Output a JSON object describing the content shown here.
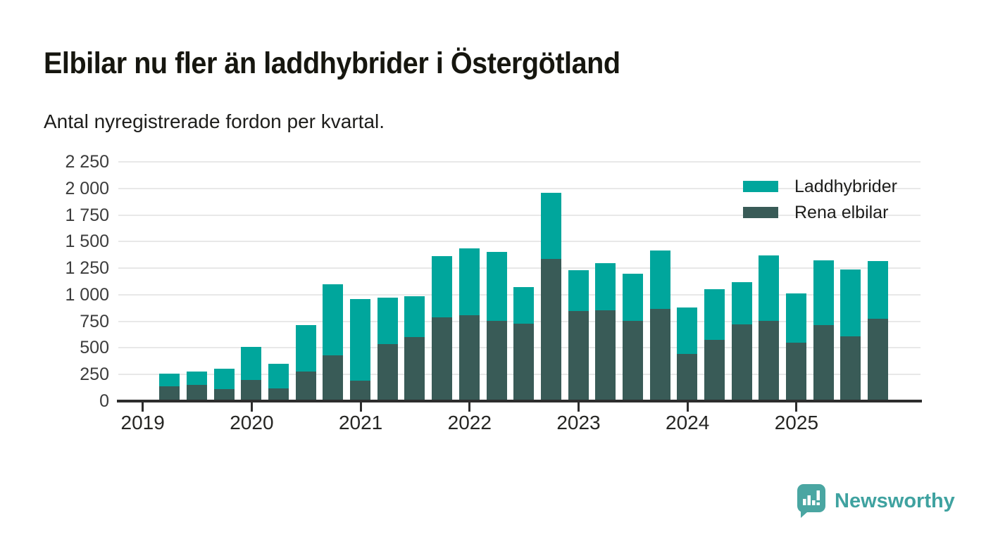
{
  "title": "Elbilar nu fler än laddhybrider i Östergötland",
  "subtitle": "Antal nyregistrerade fordon per kvartal.",
  "footer": {
    "brand": "Newsworthy"
  },
  "colors": {
    "laddhybrider": "#00a69c",
    "rena_elbilar": "#395b57",
    "gridline": "#e8e8e8",
    "axis": "#2d2d2d",
    "brand_teal": "#4aa6a2"
  },
  "chart_data": {
    "type": "bar",
    "stacked": true,
    "title": "Elbilar nu fler än laddhybrider i Östergötland",
    "subtitle": "Antal nyregistrerade fordon per kvartal.",
    "xlabel": "",
    "ylabel": "",
    "ylim": [
      0,
      2250
    ],
    "ytick_interval": 250,
    "grid": true,
    "legend_position": "top-right",
    "x": [
      "2019 Q2",
      "2019 Q3",
      "2019 Q4",
      "2020 Q1",
      "2020 Q2",
      "2020 Q3",
      "2020 Q4",
      "2021 Q1",
      "2021 Q2",
      "2021 Q3",
      "2021 Q4",
      "2022 Q1",
      "2022 Q2",
      "2022 Q3",
      "2022 Q4",
      "2023 Q1",
      "2023 Q2",
      "2023 Q3",
      "2023 Q4",
      "2024 Q1",
      "2024 Q2",
      "2024 Q3",
      "2024 Q4",
      "2025 Q1",
      "2025 Q2",
      "2025 Q3",
      "2025 Q4"
    ],
    "series": [
      {
        "name": "Laddhybrider",
        "color": "#00a69c",
        "values": [
          120,
          120,
          190,
          310,
          230,
          440,
          670,
          765,
          440,
          385,
          580,
          630,
          650,
          350,
          625,
          380,
          445,
          440,
          550,
          435,
          475,
          400,
          615,
          460,
          610,
          625,
          545
        ]
      },
      {
        "name": "Rena elbilar",
        "color": "#395b57",
        "values": [
          140,
          155,
          115,
          200,
          120,
          275,
          430,
          195,
          535,
          600,
          785,
          805,
          755,
          725,
          1335,
          850,
          855,
          755,
          865,
          445,
          575,
          720,
          755,
          550,
          715,
          610,
          775
        ]
      }
    ],
    "stack_bottom_to_top": [
      1,
      0
    ],
    "ytick_labels": [
      "0",
      "250",
      "500",
      "750",
      "1 000",
      "1 250",
      "1 500",
      "1 750",
      "2 000",
      "2 250"
    ],
    "xtick_labels": [
      "2019",
      "2020",
      "2021",
      "2022",
      "2023",
      "2024",
      "2025"
    ]
  }
}
